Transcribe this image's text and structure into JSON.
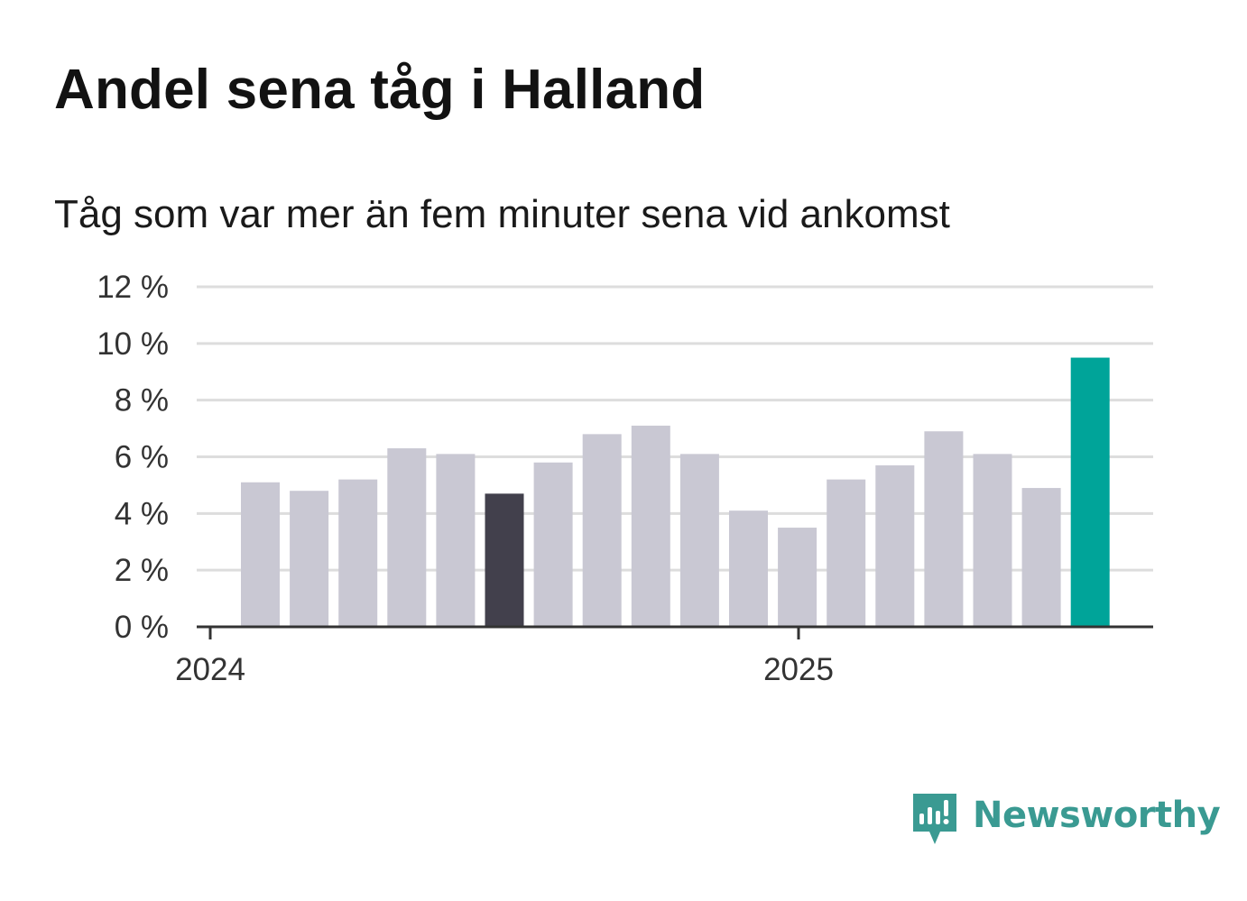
{
  "title": "Andel sena tåg i Halland",
  "subtitle": "Tåg som var mer än fem minuter sena vid ankomst",
  "brand": {
    "name": "Newsworthy",
    "icon": "newsworthy-logo-icon",
    "color": "#3a9a92"
  },
  "colors": {
    "bar_default": "#c9c8d3",
    "bar_highlight_dark": "#42404c",
    "bar_highlight_latest": "#00a499",
    "grid": "#dddddd",
    "axis": "#333333"
  },
  "chart_data": {
    "type": "bar",
    "title": "Andel sena tåg i Halland",
    "subtitle": "Tåg som var mer än fem minuter sena vid ankomst",
    "x": [
      "2024-01",
      "2024-02",
      "2024-03",
      "2024-04",
      "2024-05",
      "2024-06",
      "2024-07",
      "2024-08",
      "2024-09",
      "2024-10",
      "2024-11",
      "2024-12",
      "2025-01",
      "2025-02",
      "2025-03",
      "2025-04",
      "2025-05",
      "2025-06"
    ],
    "values": [
      5.1,
      4.8,
      5.2,
      6.3,
      6.1,
      4.7,
      5.8,
      6.8,
      7.1,
      6.1,
      4.1,
      3.5,
      5.2,
      5.7,
      6.9,
      6.1,
      4.9,
      9.5
    ],
    "highlight": [
      "normal",
      "normal",
      "normal",
      "normal",
      "normal",
      "dark",
      "normal",
      "normal",
      "normal",
      "normal",
      "normal",
      "normal",
      "normal",
      "normal",
      "normal",
      "normal",
      "normal",
      "latest"
    ],
    "ylim": [
      0,
      12
    ],
    "yticks": [
      0,
      2,
      4,
      6,
      8,
      10,
      12
    ],
    "ytick_labels": [
      "0 %",
      "2 %",
      "4 %",
      "6 %",
      "8 %",
      "10 %",
      "12 %"
    ],
    "xtick_labels": [
      {
        "label": "2024",
        "at": "2024-01"
      },
      {
        "label": "2025",
        "at": "2025-01"
      }
    ],
    "xlabel": "",
    "ylabel": "",
    "grid": true,
    "legend": "none"
  }
}
